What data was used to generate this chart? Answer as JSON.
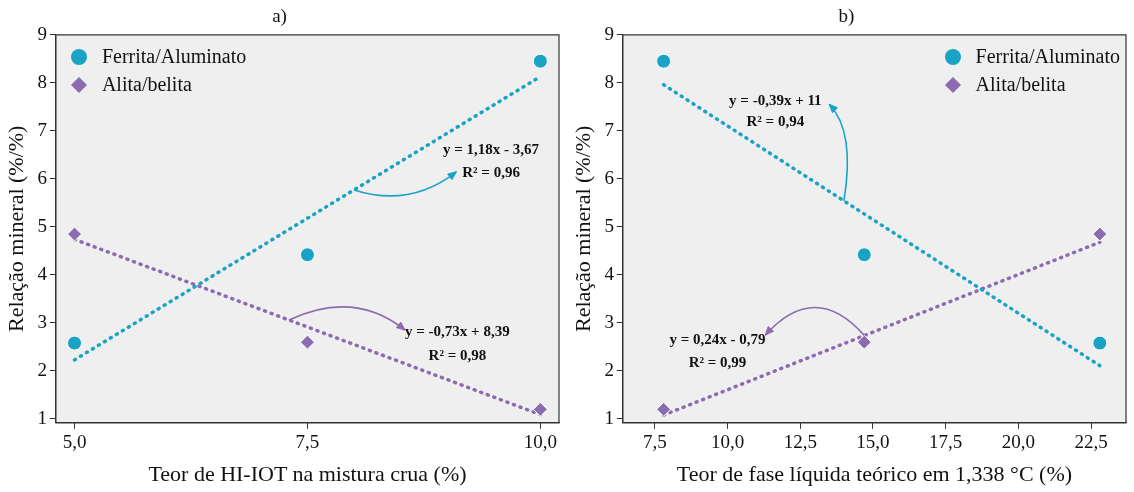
{
  "chart_data": [
    {
      "type": "scatter",
      "title": "a)",
      "xlabel": "Teor de HI-IOT na mistura crua (%)",
      "ylabel": "Relação mineral (%/%)",
      "xlim": [
        4.8,
        10.2
      ],
      "ylim": [
        0.92,
        9
      ],
      "xticks": [
        {
          "value": 5,
          "label": "5,0"
        },
        {
          "value": 7.5,
          "label": "7,5"
        },
        {
          "value": 10,
          "label": "10,0"
        }
      ],
      "yticks": [
        1,
        2,
        3,
        4,
        5,
        6,
        7,
        8,
        9
      ],
      "grid": false,
      "legend": "top left",
      "x": [
        5,
        7.5,
        10
      ],
      "series": [
        {
          "name": "Ferrita/Aluminato",
          "color": "#1aa3c4",
          "marker": "circle",
          "values": [
            2.58,
            4.42,
            8.45
          ]
        },
        {
          "name": "Alita/belita",
          "color": "#8c6bb1",
          "marker": "diamond",
          "values": [
            4.85,
            2.6,
            1.2
          ]
        },
        {
          "type": "line",
          "color": "#1aa3c4",
          "marker": "none",
          "line_style": "dotted",
          "x": [
            5,
            10
          ],
          "values": [
            2.23,
            8.13
          ]
        },
        {
          "type": "line",
          "color": "#8c6bb1",
          "marker": "none",
          "line_style": "dotted",
          "x": [
            5,
            10
          ],
          "values": [
            4.74,
            1.09
          ]
        }
      ],
      "annotations": [
        {
          "text": "y = 1,18x - 3,67",
          "x": 8.0,
          "y": 5.77
        },
        "R² = 0,96",
        {
          "text": "y = -0,73x + 8,39",
          "x": 7.3,
          "y": 3.06
        },
        "R² = 0,98"
      ]
    },
    {
      "type": "scatter",
      "title": "b)",
      "xlabel": "Teor de fase líquida teórico em 1,338 °C (%)",
      "ylabel": "Relação mineral (%/%)",
      "xlim": [
        6.4,
        23.7
      ],
      "ylim": [
        0.92,
        9
      ],
      "xticks": [
        {
          "value": 7.5,
          "label": "7,5"
        },
        {
          "value": 10,
          "label": "10,0"
        },
        {
          "value": 12.5,
          "label": "12,5"
        },
        {
          "value": 15,
          "label": "15,0"
        },
        {
          "value": 17.5,
          "label": "17,5"
        },
        {
          "value": 20,
          "label": "20,0"
        },
        {
          "value": 22.5,
          "label": "22,5"
        }
      ],
      "yticks": [
        1,
        2,
        3,
        4,
        5,
        6,
        7,
        8,
        9
      ],
      "grid": false,
      "legend": "top right",
      "x": [
        7.8,
        14.7,
        22.8
      ],
      "series": [
        {
          "name": "Ferrita/Aluminato",
          "color": "#1aa3c4",
          "marker": "circle",
          "values": [
            8.45,
            4.42,
            2.58
          ]
        },
        {
          "name": "Alita/belita",
          "color": "#8c6bb1",
          "marker": "diamond",
          "values": [
            1.2,
            2.6,
            4.85
          ]
        },
        {
          "type": "line",
          "color": "#1aa3c4",
          "marker": "none",
          "line_style": "dotted",
          "x": [
            7.8,
            22.8
          ],
          "values": [
            7.96,
            2.11
          ]
        },
        {
          "type": "line",
          "color": "#8c6bb1",
          "marker": "none",
          "line_style": "dotted",
          "x": [
            7.8,
            22.8
          ],
          "values": [
            1.08,
            4.68
          ]
        }
      ],
      "annotations": [
        {
          "text": "y = -0,39x + 11",
          "x": 14.0,
          "y": 5.54
        },
        "R² = 0,94",
        {
          "text": "y = 0,24x - 0,79",
          "x": 14.7,
          "y": 2.74
        },
        "R² = 0,99"
      ]
    }
  ]
}
